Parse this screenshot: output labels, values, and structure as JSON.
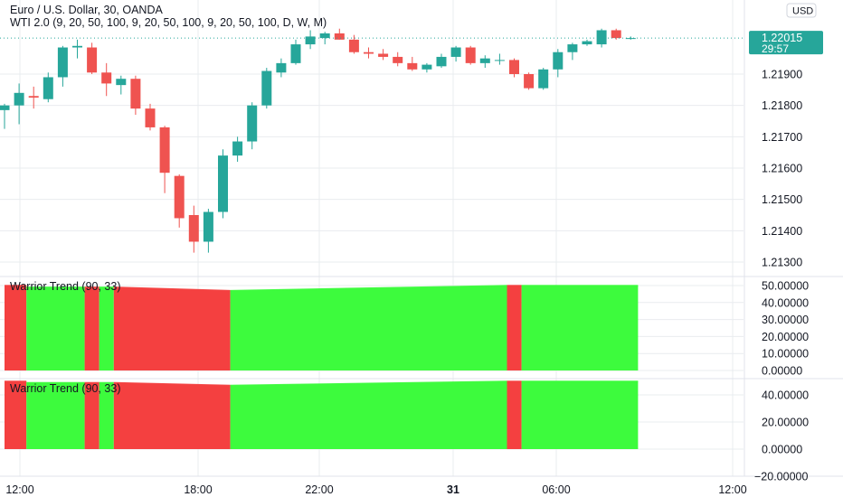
{
  "header": {
    "symbol_line": "Euro / U.S. Dollar, 30, OANDA",
    "indicator_line": "WTI 2.0 (9, 20, 50, 100, 9, 20, 50, 100, 9, 20, 50, 100, D, W, M)"
  },
  "price_scale": {
    "currency_label": "USD",
    "last_price_label": "1.22015",
    "countdown_label": "29:57",
    "last_price_color": "#26a69a"
  },
  "colors": {
    "up": "#26a69a",
    "down": "#ef5350",
    "warrior_green": "#3dfb3d",
    "warrior_red": "#f44040",
    "grid": "#e9ecef",
    "axis_text": "#131722"
  },
  "time_axis": {
    "labels": [
      {
        "text": "12:00",
        "bold": false
      },
      {
        "text": "18:00",
        "bold": false
      },
      {
        "text": "22:00",
        "bold": false
      },
      {
        "text": "31",
        "bold": true
      },
      {
        "text": "06:00",
        "bold": false
      },
      {
        "text": "12:00",
        "bold": false
      }
    ]
  },
  "chart_data": [
    {
      "type": "candlestick",
      "title": "Euro / U.S. Dollar, 30, OANDA",
      "ylim": [
        1.2122,
        1.2222
      ],
      "y_ticks": [
        "1.21300",
        "1.21400",
        "1.21500",
        "1.21600",
        "1.21700",
        "1.21800",
        "1.21900"
      ],
      "candles": [
        {
          "o": 1.21785,
          "h": 1.21805,
          "l": 1.21725,
          "c": 1.218
        },
        {
          "o": 1.218,
          "h": 1.2187,
          "l": 1.2174,
          "c": 1.2184
        },
        {
          "o": 1.2183,
          "h": 1.2186,
          "l": 1.2179,
          "c": 1.21825
        },
        {
          "o": 1.2182,
          "h": 1.21905,
          "l": 1.2181,
          "c": 1.2189
        },
        {
          "o": 1.2189,
          "h": 1.2199,
          "l": 1.2186,
          "c": 1.21985
        },
        {
          "o": 1.21985,
          "h": 1.2201,
          "l": 1.2195,
          "c": 1.2199
        },
        {
          "o": 1.21985,
          "h": 1.22,
          "l": 1.219,
          "c": 1.21905
        },
        {
          "o": 1.21905,
          "h": 1.21935,
          "l": 1.2183,
          "c": 1.2187
        },
        {
          "o": 1.21865,
          "h": 1.21895,
          "l": 1.21835,
          "c": 1.21885
        },
        {
          "o": 1.21885,
          "h": 1.21895,
          "l": 1.2177,
          "c": 1.2179
        },
        {
          "o": 1.2179,
          "h": 1.21805,
          "l": 1.2172,
          "c": 1.2173
        },
        {
          "o": 1.2173,
          "h": 1.21735,
          "l": 1.2152,
          "c": 1.21585
        },
        {
          "o": 1.21575,
          "h": 1.2158,
          "l": 1.2141,
          "c": 1.2144
        },
        {
          "o": 1.2145,
          "h": 1.2148,
          "l": 1.2133,
          "c": 1.21365
        },
        {
          "o": 1.21365,
          "h": 1.2147,
          "l": 1.2133,
          "c": 1.2146
        },
        {
          "o": 1.2146,
          "h": 1.2166,
          "l": 1.2144,
          "c": 1.2164
        },
        {
          "o": 1.2164,
          "h": 1.217,
          "l": 1.2162,
          "c": 1.21685
        },
        {
          "o": 1.21685,
          "h": 1.2181,
          "l": 1.2166,
          "c": 1.218
        },
        {
          "o": 1.218,
          "h": 1.2192,
          "l": 1.2179,
          "c": 1.2191
        },
        {
          "o": 1.21905,
          "h": 1.2195,
          "l": 1.2189,
          "c": 1.21935
        },
        {
          "o": 1.21935,
          "h": 1.2201,
          "l": 1.2193,
          "c": 1.21995
        },
        {
          "o": 1.21995,
          "h": 1.2204,
          "l": 1.2198,
          "c": 1.2202
        },
        {
          "o": 1.22015,
          "h": 1.22035,
          "l": 1.21995,
          "c": 1.2203
        },
        {
          "o": 1.2203,
          "h": 1.22045,
          "l": 1.2201,
          "c": 1.2201
        },
        {
          "o": 1.2201,
          "h": 1.22025,
          "l": 1.21965,
          "c": 1.2197
        },
        {
          "o": 1.2197,
          "h": 1.21985,
          "l": 1.2195,
          "c": 1.21965
        },
        {
          "o": 1.21965,
          "h": 1.2198,
          "l": 1.21945,
          "c": 1.21955
        },
        {
          "o": 1.21955,
          "h": 1.2197,
          "l": 1.21925,
          "c": 1.21935
        },
        {
          "o": 1.21935,
          "h": 1.21955,
          "l": 1.2191,
          "c": 1.21915
        },
        {
          "o": 1.21915,
          "h": 1.21935,
          "l": 1.21905,
          "c": 1.2193
        },
        {
          "o": 1.21925,
          "h": 1.21965,
          "l": 1.2192,
          "c": 1.21955
        },
        {
          "o": 1.21955,
          "h": 1.2199,
          "l": 1.2194,
          "c": 1.21985
        },
        {
          "o": 1.21985,
          "h": 1.2199,
          "l": 1.2193,
          "c": 1.21935
        },
        {
          "o": 1.21935,
          "h": 1.2196,
          "l": 1.2192,
          "c": 1.2195
        },
        {
          "o": 1.21945,
          "h": 1.21965,
          "l": 1.2193,
          "c": 1.21945
        },
        {
          "o": 1.21945,
          "h": 1.2195,
          "l": 1.2189,
          "c": 1.219
        },
        {
          "o": 1.219,
          "h": 1.21905,
          "l": 1.2185,
          "c": 1.21855
        },
        {
          "o": 1.21855,
          "h": 1.2192,
          "l": 1.2185,
          "c": 1.21915
        },
        {
          "o": 1.21915,
          "h": 1.2198,
          "l": 1.2189,
          "c": 1.2197
        },
        {
          "o": 1.2197,
          "h": 1.22,
          "l": 1.21945,
          "c": 1.21995
        },
        {
          "o": 1.21995,
          "h": 1.2201,
          "l": 1.2199,
          "c": 1.22005
        },
        {
          "o": 1.21995,
          "h": 1.22045,
          "l": 1.21985,
          "c": 1.2204
        },
        {
          "o": 1.2204,
          "h": 1.22045,
          "l": 1.2201,
          "c": 1.22015
        },
        {
          "o": 1.22015,
          "h": 1.2202,
          "l": 1.2201,
          "c": 1.22015
        }
      ]
    },
    {
      "type": "area",
      "title": "Warrior Trend (90, 33)",
      "ylim": [
        -2,
        52
      ],
      "y_ticks": [
        "0.00000",
        "10.00000",
        "20.00000",
        "30.00000",
        "40.00000",
        "50.00000"
      ],
      "x_count": 44,
      "segments": [
        {
          "from": 0,
          "to": 2,
          "color": "red",
          "value_start": 50,
          "value_end": 50
        },
        {
          "from": 2,
          "to": 6,
          "color": "green",
          "value_start": 49,
          "value_end": 49
        },
        {
          "from": 6,
          "to": 7,
          "color": "red",
          "value_start": 49,
          "value_end": 49
        },
        {
          "from": 7,
          "to": 8,
          "color": "green",
          "value_start": 49,
          "value_end": 49
        },
        {
          "from": 8,
          "to": 16,
          "color": "red",
          "value_start": 49,
          "value_end": 47
        },
        {
          "from": 16,
          "to": 35,
          "color": "green",
          "value_start": 47,
          "value_end": 50
        },
        {
          "from": 35,
          "to": 36,
          "color": "red",
          "value_start": 50,
          "value_end": 50
        },
        {
          "from": 36,
          "to": 43,
          "color": "green",
          "value_start": 50,
          "value_end": 50
        }
      ]
    },
    {
      "type": "area",
      "title": "Warrior Trend (90, 33)",
      "ylim": [
        -22,
        48
      ],
      "y_ticks": [
        "−20.00000",
        "0.00000",
        "20.00000",
        "40.00000"
      ],
      "x_count": 44,
      "segments": [
        {
          "from": 0,
          "to": 2,
          "color": "red",
          "value_start": 50,
          "value_end": 50
        },
        {
          "from": 2,
          "to": 6,
          "color": "green",
          "value_start": 49,
          "value_end": 49
        },
        {
          "from": 6,
          "to": 7,
          "color": "red",
          "value_start": 49,
          "value_end": 49
        },
        {
          "from": 7,
          "to": 8,
          "color": "green",
          "value_start": 49,
          "value_end": 49
        },
        {
          "from": 8,
          "to": 16,
          "color": "red",
          "value_start": 49,
          "value_end": 47
        },
        {
          "from": 16,
          "to": 35,
          "color": "green",
          "value_start": 47,
          "value_end": 50
        },
        {
          "from": 35,
          "to": 36,
          "color": "red",
          "value_start": 50,
          "value_end": 50
        },
        {
          "from": 36,
          "to": 43,
          "color": "green",
          "value_start": 50,
          "value_end": 50
        }
      ]
    }
  ]
}
